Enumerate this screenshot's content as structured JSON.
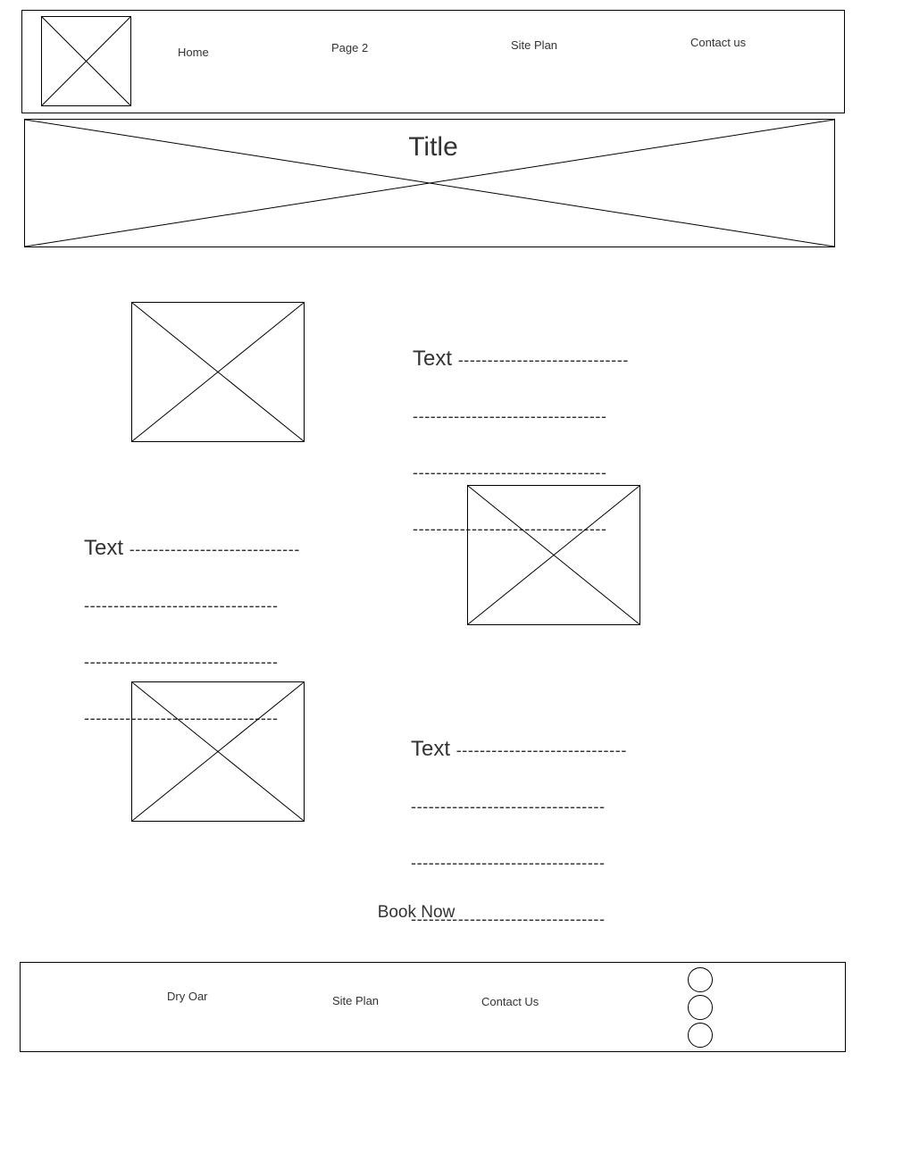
{
  "header": {
    "nav": {
      "home": "Home",
      "page2": "Page 2",
      "site_plan": "Site Plan",
      "contact": "Contact us"
    }
  },
  "banner": {
    "title": "Title"
  },
  "sections": [
    {
      "lead": "Text",
      "lead_dashes": "-----------------------------",
      "lines": [
        "---------------------------------",
        "---------------------------------",
        "---------------------------------"
      ]
    },
    {
      "lead": "Text",
      "lead_dashes": "-----------------------------",
      "lines": [
        "---------------------------------",
        "---------------------------------",
        "---------------------------------"
      ]
    },
    {
      "lead": "Text",
      "lead_dashes": "-----------------------------",
      "lines": [
        "---------------------------------",
        "---------------------------------",
        "---------------------------------"
      ]
    }
  ],
  "cta": {
    "book_now": "Book Now"
  },
  "footer": {
    "brand": "Dry Oar",
    "site_plan": "Site Plan",
    "contact": "Contact Us",
    "social_icons": [
      "social-icon-1",
      "social-icon-2",
      "social-icon-3"
    ]
  },
  "colors": {
    "outline": "#000000",
    "text": "#333333",
    "background": "#ffffff"
  }
}
